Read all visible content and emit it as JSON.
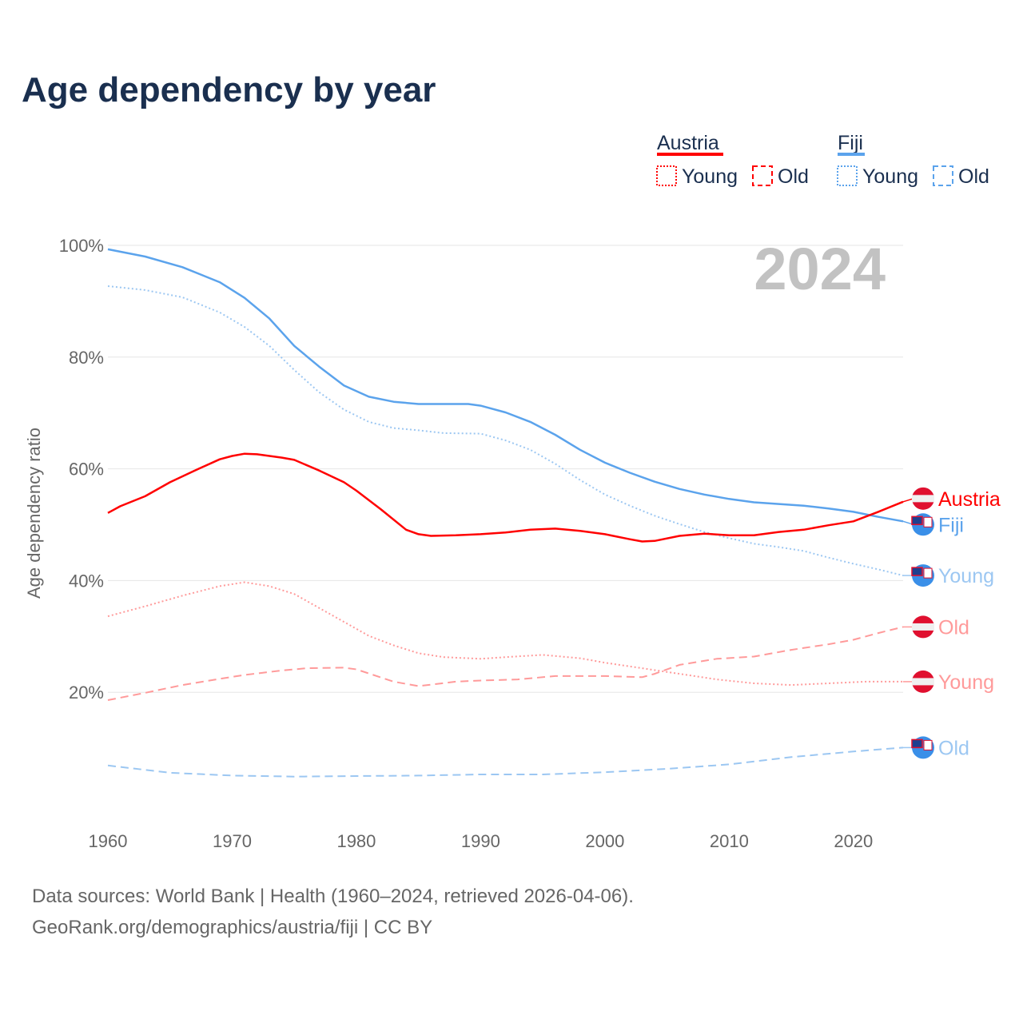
{
  "chart_data": {
    "type": "line",
    "title": "Age dependency by year",
    "ylabel": "Age dependency ratio",
    "xlabel": "",
    "year_label": "2024",
    "xlim": [
      1960,
      2024
    ],
    "ylim": [
      0,
      100
    ],
    "xticks": [
      1960,
      1970,
      1980,
      1990,
      2000,
      2010,
      2020
    ],
    "xtick_labels": [
      "1960",
      "1970",
      "1980",
      "1990",
      "2000",
      "2010",
      "2020"
    ],
    "yticks": [
      20,
      40,
      60,
      80,
      100
    ],
    "ytick_labels": [
      "20%",
      "40%",
      "60%",
      "80%",
      "100%"
    ],
    "legend": {
      "placement": "top-right",
      "groups": [
        {
          "name": "Austria",
          "color": "#ff0000",
          "items": [
            "Young",
            "Old"
          ]
        },
        {
          "name": "Fiji",
          "color": "#5ba3ec",
          "items": [
            "Young",
            "Old"
          ]
        }
      ]
    },
    "series": [
      {
        "name": "Fiji",
        "label": "Fiji",
        "country": "Fiji",
        "kind": "total",
        "color": "#5ba3ec",
        "style": "solid",
        "x": [
          1960,
          1963,
          1966,
          1969,
          1971,
          1973,
          1975,
          1977,
          1979,
          1981,
          1983,
          1985,
          1987,
          1989,
          1990,
          1992,
          1994,
          1996,
          1998,
          2000,
          2002,
          2004,
          2006,
          2008,
          2010,
          2012,
          2014,
          2016,
          2018,
          2020,
          2022,
          2024
        ],
        "y": [
          99.3,
          98,
          96.1,
          93.4,
          90.6,
          86.9,
          82,
          78.3,
          74.9,
          72.9,
          72,
          71.6,
          71.6,
          71.6,
          71.3,
          70.1,
          68.4,
          66.1,
          63.4,
          61.1,
          59.3,
          57.7,
          56.4,
          55.4,
          54.6,
          54,
          53.7,
          53.4,
          52.9,
          52.3,
          51.4,
          50.6
        ]
      },
      {
        "name": "Fiji Young",
        "label": "Young",
        "country": "Fiji",
        "kind": "young",
        "color": "#9cc7f2",
        "style": "dotted",
        "x": [
          1960,
          1963,
          1966,
          1969,
          1971,
          1973,
          1975,
          1977,
          1979,
          1981,
          1983,
          1985,
          1987,
          1990,
          1992,
          1994,
          1996,
          1998,
          2000,
          2002,
          2004,
          2006,
          2008,
          2010,
          2012,
          2014,
          2016,
          2018,
          2020,
          2022,
          2024
        ],
        "y": [
          92.7,
          92,
          90.7,
          88,
          85.4,
          82,
          77.7,
          73.7,
          70.6,
          68.4,
          67.3,
          66.9,
          66.4,
          66.3,
          65.1,
          63.4,
          60.9,
          58,
          55.4,
          53.4,
          51.6,
          50.1,
          48.7,
          47.6,
          46.6,
          46,
          45.3,
          44.1,
          43,
          42,
          40.9
        ]
      },
      {
        "name": "Fiji Old",
        "label": "Old",
        "country": "Fiji",
        "kind": "old",
        "color": "#9cc7f2",
        "style": "dashed",
        "x": [
          1960,
          1965,
          1970,
          1975,
          1980,
          1985,
          1990,
          1995,
          2000,
          2005,
          2010,
          2015,
          2020,
          2024
        ],
        "y": [
          6.9,
          5.6,
          5.1,
          4.9,
          5,
          5.1,
          5.3,
          5.3,
          5.7,
          6.3,
          7.1,
          8.4,
          9.4,
          10.1
        ]
      },
      {
        "name": "Austria",
        "label": "Austria",
        "country": "Austria",
        "kind": "total",
        "color": "#ff0000",
        "style": "solid",
        "x": [
          1960,
          1961,
          1963,
          1965,
          1967,
          1969,
          1970,
          1971,
          1972,
          1974,
          1975,
          1977,
          1979,
          1980,
          1982,
          1984,
          1985,
          1986,
          1988,
          1990,
          1992,
          1994,
          1996,
          1998,
          2000,
          2002,
          2003,
          2004,
          2006,
          2008,
          2010,
          2012,
          2014,
          2016,
          2018,
          2020,
          2022,
          2024
        ],
        "y": [
          52.1,
          53.3,
          55.1,
          57.6,
          59.7,
          61.7,
          62.3,
          62.7,
          62.6,
          62,
          61.6,
          59.7,
          57.6,
          56.1,
          52.7,
          49.1,
          48.3,
          48,
          48.1,
          48.3,
          48.6,
          49.1,
          49.3,
          48.9,
          48.3,
          47.4,
          47,
          47.1,
          48,
          48.4,
          48.1,
          48.1,
          48.7,
          49.1,
          49.9,
          50.6,
          52.3,
          54.1
        ]
      },
      {
        "name": "Austria Young",
        "label": "Young",
        "country": "Austria",
        "kind": "young",
        "color": "#ff9a9a",
        "style": "dotted",
        "x": [
          1960,
          1963,
          1966,
          1969,
          1971,
          1973,
          1975,
          1977,
          1979,
          1981,
          1983,
          1985,
          1987,
          1990,
          1992,
          1995,
          1998,
          2000,
          2003,
          2006,
          2009,
          2012,
          2015,
          2018,
          2021,
          2024
        ],
        "y": [
          33.6,
          35.4,
          37.3,
          39,
          39.7,
          39,
          37.6,
          35.1,
          32.6,
          30.1,
          28.4,
          27,
          26.3,
          26,
          26.3,
          26.7,
          26.1,
          25.3,
          24.3,
          23.3,
          22.3,
          21.6,
          21.3,
          21.6,
          21.9,
          21.9
        ]
      },
      {
        "name": "Austria Old",
        "label": "Old",
        "country": "Austria",
        "kind": "old",
        "color": "#ff9a9a",
        "style": "dashed",
        "x": [
          1960,
          1963,
          1966,
          1969,
          1971,
          1974,
          1976,
          1979,
          1980,
          1983,
          1985,
          1988,
          1990,
          1993,
          1996,
          2000,
          2003,
          2004,
          2006,
          2009,
          2012,
          2015,
          2018,
          2020,
          2022,
          2024
        ],
        "y": [
          18.6,
          19.9,
          21.3,
          22.4,
          23.1,
          23.9,
          24.3,
          24.4,
          24.1,
          21.9,
          21.1,
          21.9,
          22.1,
          22.3,
          22.9,
          22.9,
          22.7,
          23.3,
          24.9,
          26,
          26.4,
          27.6,
          28.6,
          29.4,
          30.6,
          31.7
        ]
      }
    ]
  },
  "footer": {
    "source": "Data sources: World Bank | Health (1960–2024, retrieved 2026-04-06).",
    "credit": "GeoRank.org/demographics/austria/fiji | CC BY"
  }
}
